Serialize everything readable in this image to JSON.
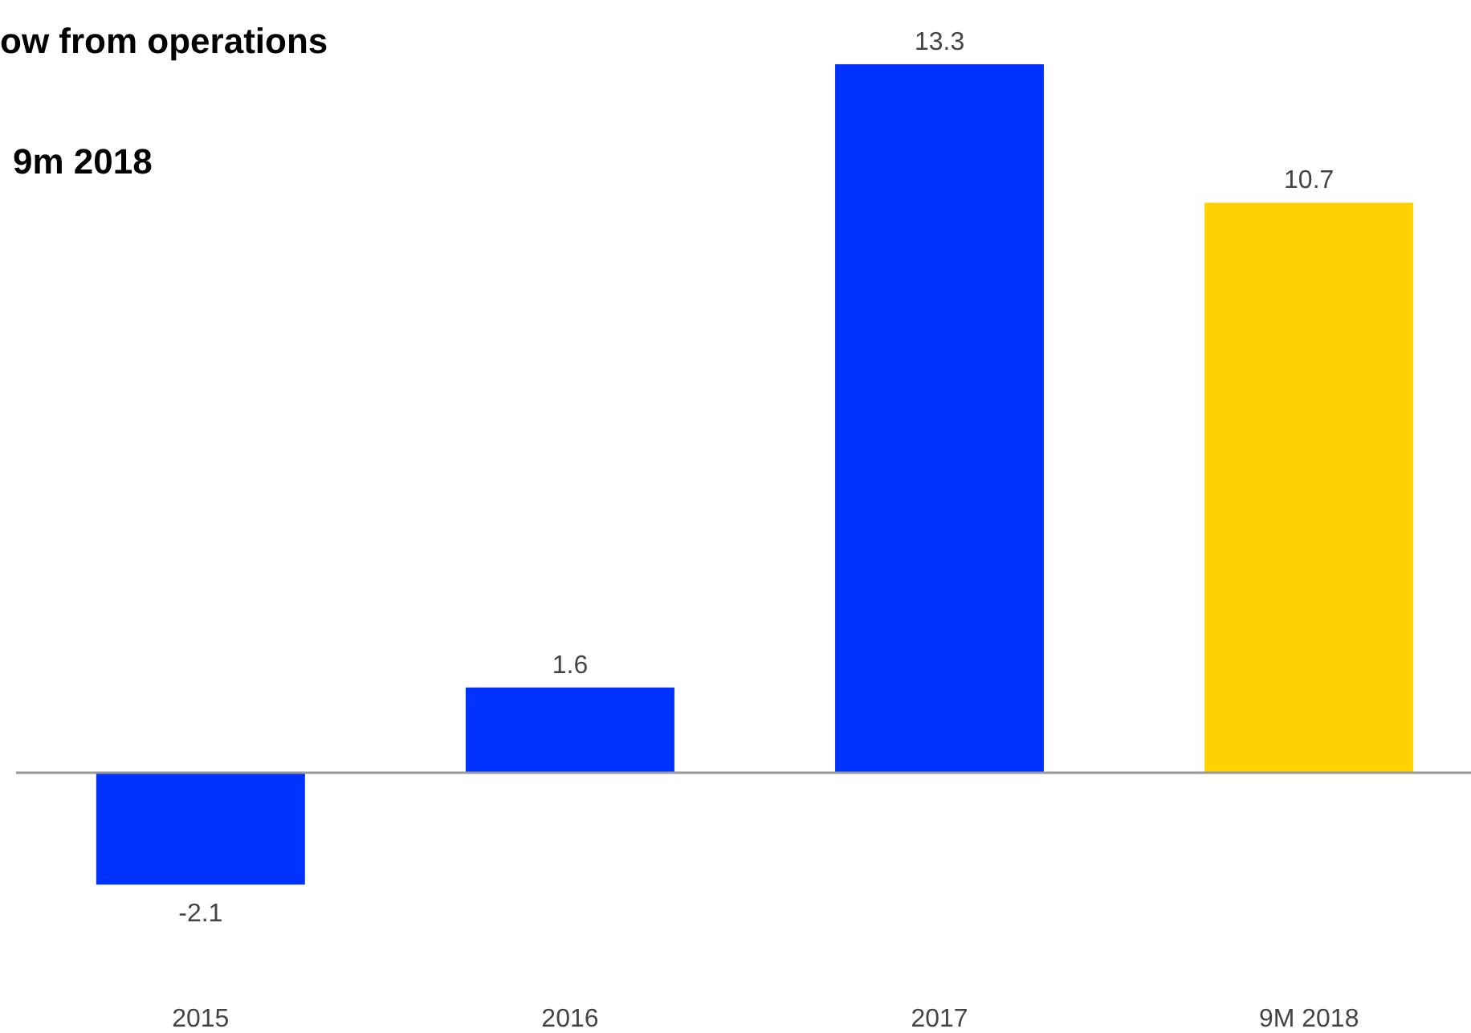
{
  "chart_data": {
    "type": "bar",
    "title": "ow from operations",
    "subtitle": "9m 2018",
    "categories": [
      "2015",
      "2016",
      "2017",
      "9M 2018"
    ],
    "values": [
      -2.1,
      1.6,
      13.3,
      10.7
    ],
    "colors": [
      "#0033ff",
      "#0033ff",
      "#0033ff",
      "#ffd200"
    ],
    "data_labels": true
  }
}
